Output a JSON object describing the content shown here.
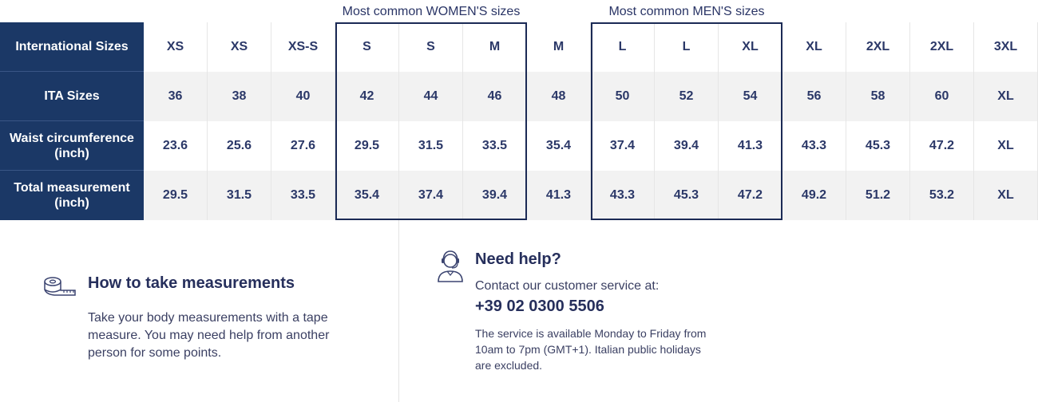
{
  "captions": {
    "women": "Most common WOMEN'S sizes",
    "men": "Most common MEN'S sizes"
  },
  "table": {
    "rows": [
      {
        "label": "International Sizes",
        "cells": [
          "XS",
          "XS",
          "XS-S",
          "S",
          "S",
          "M",
          "M",
          "L",
          "L",
          "XL",
          "XL",
          "2XL",
          "2XL",
          "3XL"
        ]
      },
      {
        "label": "ITA Sizes",
        "cells": [
          "36",
          "38",
          "40",
          "42",
          "44",
          "46",
          "48",
          "50",
          "52",
          "54",
          "56",
          "58",
          "60",
          "XL"
        ]
      },
      {
        "label": "Waist circumference (inch)",
        "cells": [
          "23.6",
          "25.6",
          "27.6",
          "29.5",
          "31.5",
          "33.5",
          "35.4",
          "37.4",
          "39.4",
          "41.3",
          "43.3",
          "45.3",
          "47.2",
          "XL"
        ]
      },
      {
        "label": "Total measurement (inch)",
        "cells": [
          "29.5",
          "31.5",
          "33.5",
          "35.4",
          "37.4",
          "39.4",
          "41.3",
          "43.3",
          "45.3",
          "47.2",
          "49.2",
          "51.2",
          "53.2",
          "XL"
        ]
      }
    ]
  },
  "measure": {
    "icon": "tape-measure-icon",
    "title": "How to take measurements",
    "text": "Take your body measurements with a tape measure. You may need help from another person for some points."
  },
  "help": {
    "icon": "customer-service-icon",
    "title": "Need help?",
    "contact": "Contact our customer service at:",
    "phone": "+39 02 0300 5506",
    "note": "The service is available Monday to Friday from 10am to 7pm (GMT+1). Italian public holidays are excluded."
  },
  "colors": {
    "header_bg": "#1b3866",
    "text": "#2b3868",
    "alt_row": "#f2f2f2",
    "highlight_border": "#1b2a55"
  }
}
